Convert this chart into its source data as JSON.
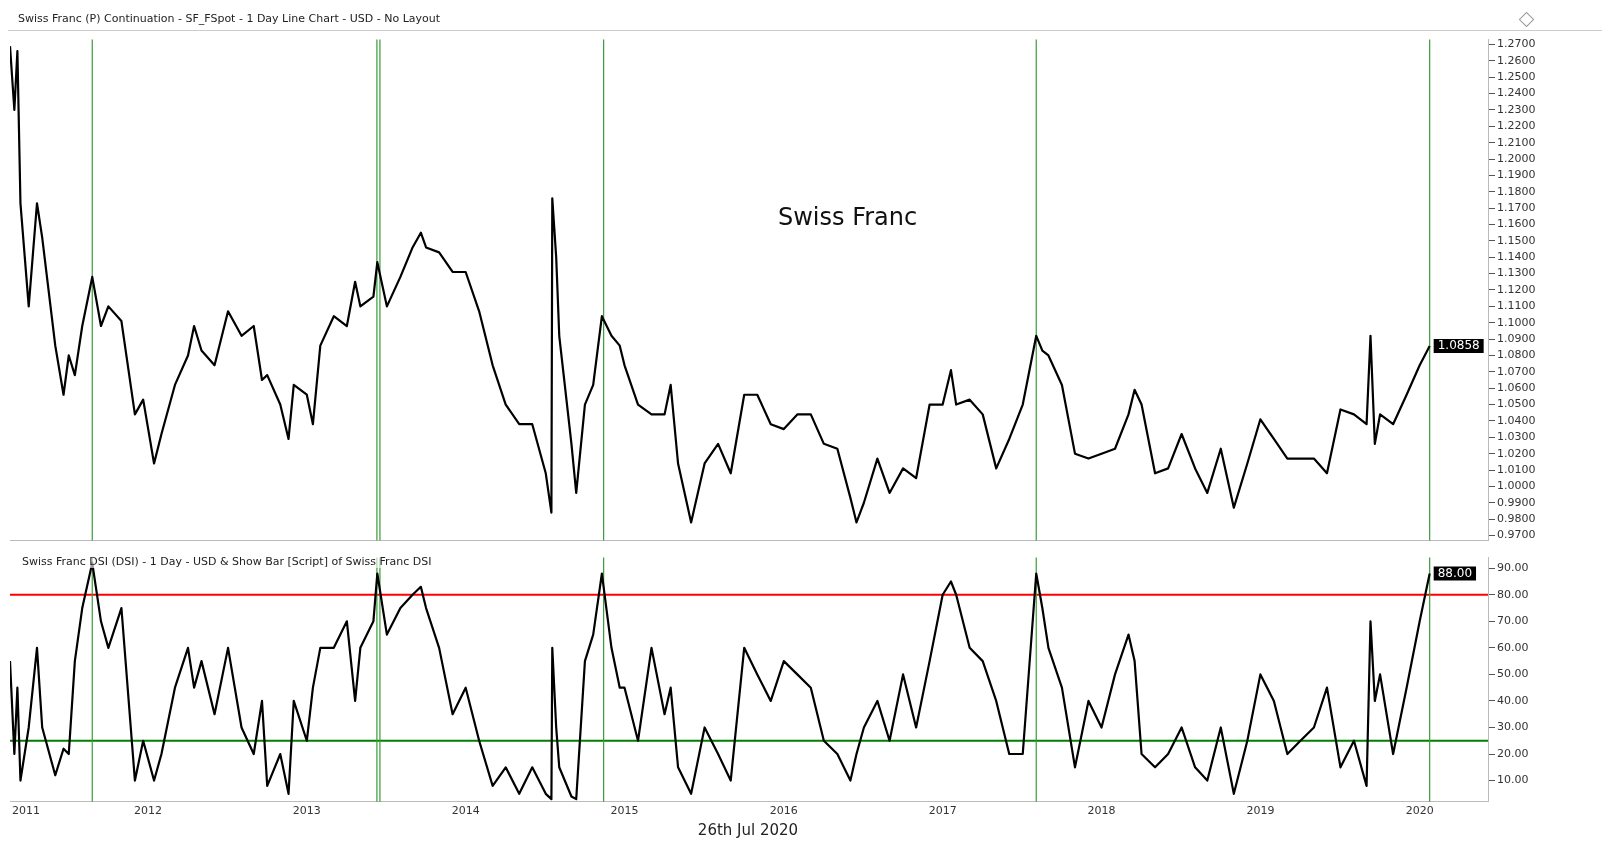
{
  "chart_data": [
    {
      "type": "line",
      "title": "Swiss Franc (P) Continuation - SF_FSpot - 1 Day Line Chart - USD - No Layout",
      "x": [
        "2011-08-19",
        "2011-08-29",
        "2011-09-05",
        "2011-09-12",
        "2011-10-01",
        "2011-10-20",
        "2011-11-01",
        "2011-12-01",
        "2011-12-20",
        "2012-01-01",
        "2012-01-15",
        "2012-02-01",
        "2012-02-24",
        "2012-03-15",
        "2012-04-01",
        "2012-05-01",
        "2012-06-01",
        "2012-06-20",
        "2012-07-15",
        "2012-08-01",
        "2012-09-01",
        "2012-10-01",
        "2012-10-15",
        "2012-11-01",
        "2012-12-01",
        "2013-01-01",
        "2013-02-01",
        "2013-03-01",
        "2013-03-20",
        "2013-04-01",
        "2013-05-01",
        "2013-05-20",
        "2013-06-01",
        "2013-07-01",
        "2013-07-15",
        "2013-08-01",
        "2013-09-01",
        "2013-10-01",
        "2013-10-20",
        "2013-11-01",
        "2013-12-01",
        "2013-12-10",
        "2014-01-01",
        "2014-02-01",
        "2014-03-01",
        "2014-03-20",
        "2014-04-01",
        "2014-05-01",
        "2014-06-01",
        "2014-07-01",
        "2014-08-01",
        "2014-09-01",
        "2014-10-01",
        "2014-11-01",
        "2014-12-01",
        "2015-01-01",
        "2015-01-14",
        "2015-01-16",
        "2015-01-25",
        "2015-02-01",
        "2015-03-01",
        "2015-03-12",
        "2015-04-01",
        "2015-04-20",
        "2015-05-10",
        "2015-06-01",
        "2015-06-20",
        "2015-07-01",
        "2015-08-01",
        "2015-09-01",
        "2015-10-01",
        "2015-10-15",
        "2015-11-01",
        "2015-12-01",
        "2016-01-01",
        "2016-02-01",
        "2016-03-01",
        "2016-04-01",
        "2016-05-01",
        "2016-06-01",
        "2016-07-01",
        "2016-08-01",
        "2016-09-01",
        "2016-10-01",
        "2016-11-01",
        "2016-12-01",
        "2016-12-15",
        "2017-01-01",
        "2017-02-01",
        "2017-03-01",
        "2017-04-01",
        "2017-05-01",
        "2017-06-01",
        "2017-07-01",
        "2017-07-20",
        "2017-08-01",
        "2017-09-01",
        "2017-10-01",
        "2017-11-01",
        "2017-12-01",
        "2018-01-01",
        "2018-02-01",
        "2018-02-15",
        "2018-03-01",
        "2018-04-01",
        "2018-05-01",
        "2018-06-01",
        "2018-07-01",
        "2018-08-01",
        "2018-09-01",
        "2018-09-15",
        "2018-10-01",
        "2018-11-01",
        "2018-12-01",
        "2019-01-01",
        "2019-02-01",
        "2019-03-01",
        "2019-04-01",
        "2019-05-01",
        "2019-06-01",
        "2019-07-01",
        "2019-08-01",
        "2019-09-01",
        "2019-10-01",
        "2019-11-01",
        "2019-12-01",
        "2020-01-01",
        "2020-02-01",
        "2020-03-01",
        "2020-03-10",
        "2020-03-20",
        "2020-04-01",
        "2020-05-01",
        "2020-06-01",
        "2020-07-01",
        "2020-07-24"
      ],
      "series": [
        {
          "color": "#000000",
          "values": [
            1.269,
            1.23,
            1.266,
            1.173,
            1.11,
            1.173,
            1.152,
            1.086,
            1.056,
            1.08,
            1.068,
            1.098,
            1.128,
            1.098,
            1.11,
            1.101,
            1.044,
            1.053,
            1.014,
            1.032,
            1.062,
            1.08,
            1.098,
            1.083,
            1.074,
            1.107,
            1.092,
            1.098,
            1.065,
            1.068,
            1.05,
            1.029,
            1.062,
            1.056,
            1.038,
            1.086,
            1.104,
            1.098,
            1.125,
            1.11,
            1.116,
            1.137,
            1.11,
            1.128,
            1.146,
            1.155,
            1.146,
            1.143,
            1.131,
            1.131,
            1.107,
            1.074,
            1.05,
            1.038,
            1.038,
            1.008,
            0.984,
            1.176,
            1.14,
            1.092,
            1.026,
            0.996,
            1.05,
            1.062,
            1.104,
            1.092,
            1.086,
            1.074,
            1.05,
            1.044,
            1.044,
            1.062,
            1.014,
            0.978,
            1.014,
            1.026,
            1.008,
            1.056,
            1.056,
            1.038,
            1.035,
            1.044,
            1.044,
            1.026,
            1.023,
            0.993,
            0.978,
            0.99,
            1.017,
            0.996,
            1.011,
            1.005,
            1.05,
            1.05,
            1.071,
            1.05,
            1.053,
            1.044,
            1.011,
            1.029,
            1.05,
            1.092,
            1.083,
            1.08,
            1.062,
            1.02,
            1.017,
            1.02,
            1.023,
            1.044,
            1.059,
            1.05,
            1.008,
            1.011,
            1.032,
            1.011,
            0.996,
            1.023,
            0.987,
            1.014,
            1.041,
            1.029,
            1.017,
            1.017,
            1.017,
            1.008,
            1.047,
            1.044,
            1.038,
            1.092,
            1.026,
            1.044,
            1.038,
            1.056,
            1.074,
            1.0858
          ]
        }
      ],
      "xlim": [
        "2011-08-19",
        "2020-12-05"
      ],
      "ylim": [
        0.967,
        1.273
      ],
      "yticks": [
        {
          "value": 0.97,
          "label": "0.9700"
        },
        {
          "value": 0.98,
          "label": "0.9800"
        },
        {
          "value": 0.99,
          "label": "0.9900"
        },
        {
          "value": 1.0,
          "label": "1.0000"
        },
        {
          "value": 1.01,
          "label": "1.0100"
        },
        {
          "value": 1.02,
          "label": "1.0200"
        },
        {
          "value": 1.03,
          "label": "1.0300"
        },
        {
          "value": 1.04,
          "label": "1.0400"
        },
        {
          "value": 1.05,
          "label": "1.0500"
        },
        {
          "value": 1.06,
          "label": "1.0600"
        },
        {
          "value": 1.07,
          "label": "1.0700"
        },
        {
          "value": 1.08,
          "label": "1.0800"
        },
        {
          "value": 1.09,
          "label": "1.0900"
        },
        {
          "value": 1.1,
          "label": "1.1000"
        },
        {
          "value": 1.11,
          "label": "1.1100"
        },
        {
          "value": 1.12,
          "label": "1.1200"
        },
        {
          "value": 1.13,
          "label": "1.1300"
        },
        {
          "value": 1.14,
          "label": "1.1400"
        },
        {
          "value": 1.15,
          "label": "1.1500"
        },
        {
          "value": 1.16,
          "label": "1.1600"
        },
        {
          "value": 1.17,
          "label": "1.1700"
        },
        {
          "value": 1.18,
          "label": "1.1800"
        },
        {
          "value": 1.19,
          "label": "1.1900"
        },
        {
          "value": 1.2,
          "label": "1.2000"
        },
        {
          "value": 1.21,
          "label": "1.2100"
        },
        {
          "value": 1.22,
          "label": "1.2200"
        },
        {
          "value": 1.23,
          "label": "1.2300"
        },
        {
          "value": 1.24,
          "label": "1.2400"
        },
        {
          "value": 1.25,
          "label": "1.2500"
        },
        {
          "value": 1.26,
          "label": "1.2600"
        },
        {
          "value": 1.27,
          "label": "1.2700"
        }
      ],
      "tick_labels": "y",
      "grid": false,
      "legend": false,
      "ref_lines": [
        {
          "axis": "x",
          "value": "2012-02-24",
          "color": "#3a9a3a"
        },
        {
          "axis": "x",
          "value": "2013-12-09",
          "color": "#3a9a3a"
        },
        {
          "axis": "x",
          "value": "2013-12-16",
          "color": "#3a9a3a"
        },
        {
          "axis": "x",
          "value": "2015-05-14",
          "color": "#3a9a3a"
        },
        {
          "axis": "x",
          "value": "2018-02-01",
          "color": "#3a9a3a"
        },
        {
          "axis": "x",
          "value": "2020-07-24",
          "color": "#3a9a3a"
        }
      ],
      "annotations": [
        "Swiss Franc",
        {
          "text": "1.0858",
          "x": "2020-07-24",
          "y": 1.0858
        }
      ]
    },
    {
      "type": "line",
      "title": "Swiss Franc DSI (DSI) - 1 Day - USD & Show Bar [Script] of Swiss Franc DSI",
      "x": [
        "2011-08-19",
        "2011-08-29",
        "2011-09-05",
        "2011-09-12",
        "2011-10-01",
        "2011-10-20",
        "2011-11-01",
        "2011-12-01",
        "2011-12-20",
        "2012-01-01",
        "2012-01-15",
        "2012-02-01",
        "2012-02-24",
        "2012-03-15",
        "2012-04-01",
        "2012-05-01",
        "2012-06-01",
        "2012-06-20",
        "2012-07-15",
        "2012-08-01",
        "2012-09-01",
        "2012-10-01",
        "2012-10-15",
        "2012-11-01",
        "2012-12-01",
        "2013-01-01",
        "2013-02-01",
        "2013-03-01",
        "2013-03-20",
        "2013-04-01",
        "2013-05-01",
        "2013-05-20",
        "2013-06-01",
        "2013-07-01",
        "2013-07-15",
        "2013-08-01",
        "2013-09-01",
        "2013-10-01",
        "2013-10-20",
        "2013-11-01",
        "2013-12-01",
        "2013-12-10",
        "2014-01-01",
        "2014-02-01",
        "2014-03-01",
        "2014-03-20",
        "2014-04-01",
        "2014-05-01",
        "2014-06-01",
        "2014-07-01",
        "2014-08-01",
        "2014-09-01",
        "2014-10-01",
        "2014-11-01",
        "2014-12-01",
        "2015-01-01",
        "2015-01-14",
        "2015-01-16",
        "2015-01-25",
        "2015-02-01",
        "2015-03-01",
        "2015-03-12",
        "2015-04-01",
        "2015-04-20",
        "2015-05-10",
        "2015-06-01",
        "2015-06-20",
        "2015-07-01",
        "2015-08-01",
        "2015-09-01",
        "2015-10-01",
        "2015-10-15",
        "2015-11-01",
        "2015-12-01",
        "2016-01-01",
        "2016-02-01",
        "2016-03-01",
        "2016-04-01",
        "2016-05-01",
        "2016-06-01",
        "2016-07-01",
        "2016-08-01",
        "2016-09-01",
        "2016-10-01",
        "2016-11-01",
        "2016-12-01",
        "2016-12-15",
        "2017-01-01",
        "2017-02-01",
        "2017-03-01",
        "2017-04-01",
        "2017-05-01",
        "2017-06-01",
        "2017-07-01",
        "2017-07-20",
        "2017-08-01",
        "2017-09-01",
        "2017-10-01",
        "2017-11-01",
        "2017-12-01",
        "2018-01-01",
        "2018-02-01",
        "2018-02-15",
        "2018-03-01",
        "2018-04-01",
        "2018-05-01",
        "2018-06-01",
        "2018-07-01",
        "2018-08-01",
        "2018-09-01",
        "2018-09-15",
        "2018-10-01",
        "2018-11-01",
        "2018-12-01",
        "2019-01-01",
        "2019-02-01",
        "2019-03-01",
        "2019-04-01",
        "2019-05-01",
        "2019-06-01",
        "2019-07-01",
        "2019-08-01",
        "2019-09-01",
        "2019-10-01",
        "2019-11-01",
        "2019-12-01",
        "2020-01-01",
        "2020-02-01",
        "2020-03-01",
        "2020-03-10",
        "2020-03-20",
        "2020-04-01",
        "2020-05-01",
        "2020-06-01",
        "2020-07-01",
        "2020-07-24"
      ],
      "series": [
        {
          "color": "#000000",
          "values": [
            55,
            20,
            45,
            10,
            30,
            60,
            30,
            12,
            22,
            20,
            55,
            75,
            92,
            70,
            60,
            75,
            10,
            25,
            10,
            20,
            45,
            60,
            45,
            55,
            35,
            60,
            30,
            20,
            40,
            8,
            20,
            5,
            40,
            25,
            45,
            60,
            60,
            70,
            40,
            60,
            70,
            88,
            65,
            75,
            80,
            83,
            75,
            60,
            35,
            45,
            25,
            8,
            15,
            5,
            15,
            5,
            3,
            60,
            30,
            15,
            4,
            3,
            55,
            65,
            88,
            60,
            45,
            45,
            25,
            60,
            35,
            45,
            15,
            5,
            30,
            20,
            10,
            60,
            50,
            40,
            55,
            50,
            45,
            25,
            20,
            10,
            20,
            30,
            40,
            25,
            50,
            30,
            55,
            80,
            85,
            80,
            60,
            55,
            40,
            20,
            20,
            88,
            75,
            60,
            45,
            15,
            40,
            30,
            50,
            65,
            55,
            20,
            15,
            20,
            30,
            15,
            10,
            30,
            5,
            25,
            50,
            40,
            20,
            25,
            30,
            45,
            15,
            25,
            8,
            70,
            40,
            50,
            20,
            45,
            70,
            88
          ]
        }
      ],
      "xlim": [
        "2011-08-19",
        "2020-12-05"
      ],
      "xticks": [
        {
          "value": "2011-09-25",
          "label": "2011"
        },
        {
          "value": "2012-07-01",
          "label": "2012"
        },
        {
          "value": "2013-07-01",
          "label": "2013"
        },
        {
          "value": "2014-07-01",
          "label": "2014"
        },
        {
          "value": "2015-07-01",
          "label": "2015"
        },
        {
          "value": "2016-07-01",
          "label": "2016"
        },
        {
          "value": "2017-07-01",
          "label": "2017"
        },
        {
          "value": "2018-07-01",
          "label": "2018"
        },
        {
          "value": "2019-07-01",
          "label": "2019"
        },
        {
          "value": "2020-07-01",
          "label": "2020"
        }
      ],
      "ylim": [
        2,
        94
      ],
      "yticks": [
        {
          "value": 10,
          "label": "10.00"
        },
        {
          "value": 20,
          "label": "20.00"
        },
        {
          "value": 30,
          "label": "30.00"
        },
        {
          "value": 40,
          "label": "40.00"
        },
        {
          "value": 50,
          "label": "50.00"
        },
        {
          "value": 60,
          "label": "60.00"
        },
        {
          "value": 70,
          "label": "70.00"
        },
        {
          "value": 80,
          "label": "80.00"
        },
        {
          "value": 90,
          "label": "90.00"
        }
      ],
      "grid": false,
      "legend": false,
      "ref_lines": [
        {
          "axis": "y",
          "value": 80,
          "color": "#ff0000"
        },
        {
          "axis": "y",
          "value": 25,
          "color": "#008000"
        },
        {
          "axis": "x",
          "value": "2012-02-24",
          "color": "#3a9a3a"
        },
        {
          "axis": "x",
          "value": "2013-12-09",
          "color": "#3a9a3a"
        },
        {
          "axis": "x",
          "value": "2013-12-16",
          "color": "#3a9a3a"
        },
        {
          "axis": "x",
          "value": "2015-05-14",
          "color": "#3a9a3a"
        },
        {
          "axis": "x",
          "value": "2018-02-01",
          "color": "#3a9a3a"
        },
        {
          "axis": "x",
          "value": "2020-07-24",
          "color": "#3a9a3a"
        }
      ],
      "annotations": [
        {
          "text": "88.00",
          "x": "2020-07-24",
          "y": 88
        },
        "26th Jul 2020"
      ]
    }
  ]
}
